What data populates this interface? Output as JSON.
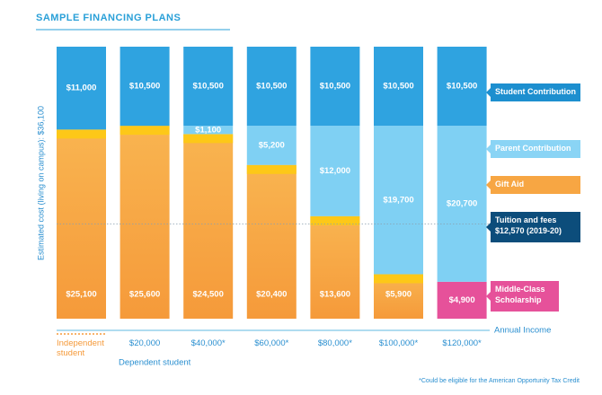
{
  "chart_data": {
    "type": "stacked-bar",
    "title": "SAMPLE FINANCING PLANS",
    "y_label": "Estimated cost (living on campus): $36,100",
    "ylim": [
      0,
      36100
    ],
    "categories": [
      "Independent student",
      "$20,000",
      "$40,000*",
      "$60,000*",
      "$80,000*",
      "$100,000*",
      "$120,000*"
    ],
    "x_group_label": "Dependent student",
    "x_label": "Annual Income",
    "series": [
      {
        "name": "Gift Aid",
        "color": "#f7a643",
        "values": [
          25100,
          25600,
          24500,
          20400,
          13600,
          5900,
          null
        ],
        "value_labels": [
          "$25,100",
          "$25,600",
          "$24,500",
          "$20,400",
          "$13,600",
          "$5,900",
          null
        ]
      },
      {
        "name": "Middle-Class Scholarship",
        "color": "#e6519a",
        "values": [
          null,
          null,
          null,
          null,
          null,
          null,
          4900
        ],
        "value_labels": [
          null,
          null,
          null,
          null,
          null,
          null,
          "$4,900"
        ]
      },
      {
        "name": "Parent Contribution",
        "color": "#7fd0f3",
        "values": [
          null,
          null,
          1100,
          5200,
          12000,
          19700,
          20700
        ],
        "value_labels": [
          null,
          null,
          "$1,100",
          "$5,200",
          "$12,000",
          "$19,700",
          "$20,700"
        ]
      },
      {
        "name": "Student Contribution",
        "color": "#2fa3e0",
        "values": [
          11000,
          10500,
          10500,
          10500,
          10500,
          10500,
          10500
        ],
        "value_labels": [
          "$11,000",
          "$10,500",
          "$10,500",
          "$10,500",
          "$10,500",
          "$10,500",
          "$10,500"
        ]
      }
    ],
    "reference_line": {
      "value": 12570,
      "label_lines": [
        "Tuition and fees",
        "$12,570 (2019-20)"
      ],
      "color": "#0c4d7b"
    },
    "footnote": "*Could be eligible for the American Opportunity Tax Credit"
  }
}
